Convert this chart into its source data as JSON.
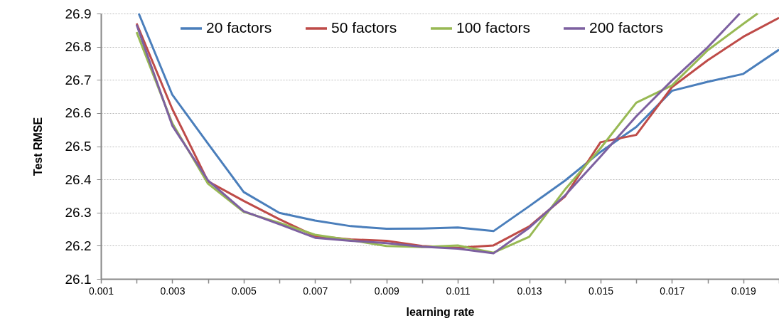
{
  "chart_data": {
    "type": "line",
    "xlabel": "learning rate",
    "ylabel": "Test RMSE",
    "xlim": [
      0.001,
      0.02
    ],
    "ylim": [
      26.1,
      26.9
    ],
    "xticks": [
      0.001,
      {
        "value": 0.002,
        "label": null
      },
      0.003,
      {
        "value": 0.004,
        "label": null
      },
      0.005,
      {
        "value": 0.006,
        "label": null
      },
      0.007,
      {
        "value": 0.008,
        "label": null
      },
      0.009,
      {
        "value": 0.01,
        "label": null
      },
      0.011,
      {
        "value": 0.012,
        "label": null
      },
      0.013,
      {
        "value": 0.014,
        "label": null
      },
      0.015,
      {
        "value": 0.016,
        "label": null
      },
      0.017,
      {
        "value": 0.018,
        "label": null
      },
      0.019,
      {
        "value": 0.02,
        "label": null
      }
    ],
    "yticks": [
      26.1,
      26.2,
      26.3,
      26.4,
      26.5,
      26.6,
      26.7,
      26.8,
      26.9
    ],
    "grid": "y",
    "legend": "top",
    "marker": "none",
    "line_style": "solid",
    "series": [
      {
        "name": "20 factors",
        "color": "#4a7ebb",
        "x": [
          0.00206,
          0.003,
          0.004,
          0.005,
          0.006,
          0.007,
          0.008,
          0.009,
          0.01,
          0.011,
          0.012,
          0.013,
          0.014,
          0.015,
          0.016,
          0.017,
          0.018,
          0.019,
          0.02
        ],
        "values": [
          26.9,
          26.655,
          26.508,
          26.362,
          26.299,
          26.276,
          26.259,
          26.251,
          26.252,
          26.255,
          26.244,
          26.319,
          26.396,
          26.483,
          26.558,
          26.667,
          26.694,
          26.718,
          26.791
        ]
      },
      {
        "name": "50 factors",
        "color": "#be4b48",
        "x": [
          0.002,
          0.003,
          0.004,
          0.005,
          0.006,
          0.007,
          0.008,
          0.009,
          0.01,
          0.011,
          0.012,
          0.013,
          0.014,
          0.015,
          0.016,
          0.017,
          0.018,
          0.019,
          0.02
        ],
        "values": [
          26.87,
          26.612,
          26.394,
          26.335,
          26.28,
          26.229,
          26.219,
          26.215,
          26.199,
          26.194,
          26.201,
          26.258,
          26.348,
          26.512,
          26.534,
          26.678,
          26.759,
          26.83,
          26.887
        ]
      },
      {
        "name": "100 factors",
        "color": "#98b954",
        "x": [
          0.002,
          0.003,
          0.004,
          0.005,
          0.006,
          0.007,
          0.008,
          0.009,
          0.01,
          0.011,
          0.012,
          0.013,
          0.014,
          0.015,
          0.016,
          0.017,
          0.018,
          0.019,
          0.0194
        ],
        "values": [
          26.844,
          26.569,
          26.387,
          26.302,
          26.269,
          26.233,
          26.217,
          26.199,
          26.196,
          26.201,
          26.179,
          26.227,
          26.369,
          26.494,
          26.631,
          26.683,
          26.789,
          26.869,
          26.9
        ]
      },
      {
        "name": "200 factors",
        "color": "#7d60a0",
        "x": [
          0.002,
          0.003,
          0.004,
          0.005,
          0.006,
          0.007,
          0.008,
          0.009,
          0.01,
          0.011,
          0.012,
          0.013,
          0.014,
          0.015,
          0.016,
          0.017,
          0.018,
          0.0189
        ],
        "values": [
          26.866,
          26.562,
          26.397,
          26.304,
          26.265,
          26.224,
          26.215,
          26.208,
          26.197,
          26.191,
          26.177,
          26.254,
          26.351,
          26.469,
          26.59,
          26.698,
          26.798,
          26.9
        ]
      }
    ]
  }
}
